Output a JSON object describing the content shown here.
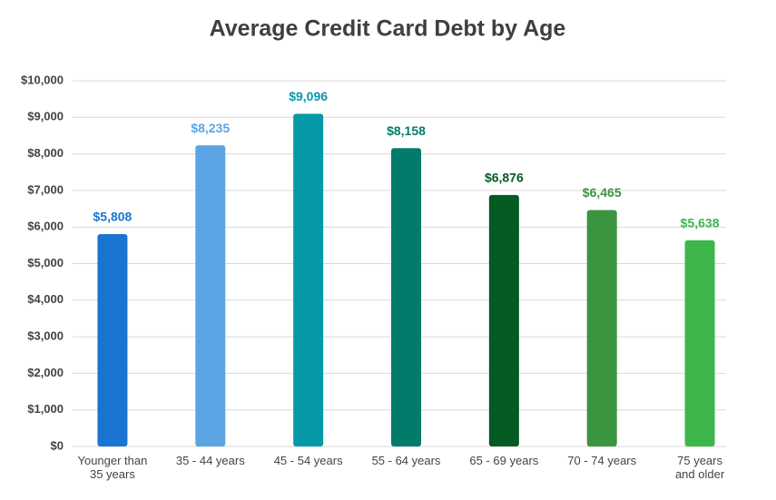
{
  "chart_data": {
    "type": "bar",
    "title": "Average Credit Card Debt by Age",
    "categories": [
      "Younger than 35 years",
      "35 - 44 years",
      "45 - 54 years",
      "55 - 64 years",
      "65 - 69 years",
      "70 - 74 years",
      "75 years and older"
    ],
    "values": [
      5808,
      8235,
      9096,
      8158,
      6876,
      6465,
      5638
    ],
    "value_labels": [
      "$5,808",
      "$8,235",
      "$9,096",
      "$8,158",
      "$6,876",
      "$6,465",
      "$5,638"
    ],
    "colors": [
      "#1a75d2",
      "#5ba5e5",
      "#0699a8",
      "#037b6a",
      "#035a23",
      "#3b943f",
      "#3db64a"
    ],
    "ylim": [
      0,
      10000
    ],
    "yticks": [
      {
        "value": 0,
        "label": "$0"
      },
      {
        "value": 1000,
        "label": "$1,000"
      },
      {
        "value": 2000,
        "label": "$2,000"
      },
      {
        "value": 3000,
        "label": "$3,000"
      },
      {
        "value": 4000,
        "label": "$4,000"
      },
      {
        "value": 5000,
        "label": "$5,000"
      },
      {
        "value": 6000,
        "label": "$6,000"
      },
      {
        "value": 7000,
        "label": "$7,000"
      },
      {
        "value": 8000,
        "label": "$8,000"
      },
      {
        "value": 9000,
        "label": "$9,000"
      },
      {
        "value": 10000,
        "label": "$10,000"
      }
    ],
    "grid": true
  }
}
